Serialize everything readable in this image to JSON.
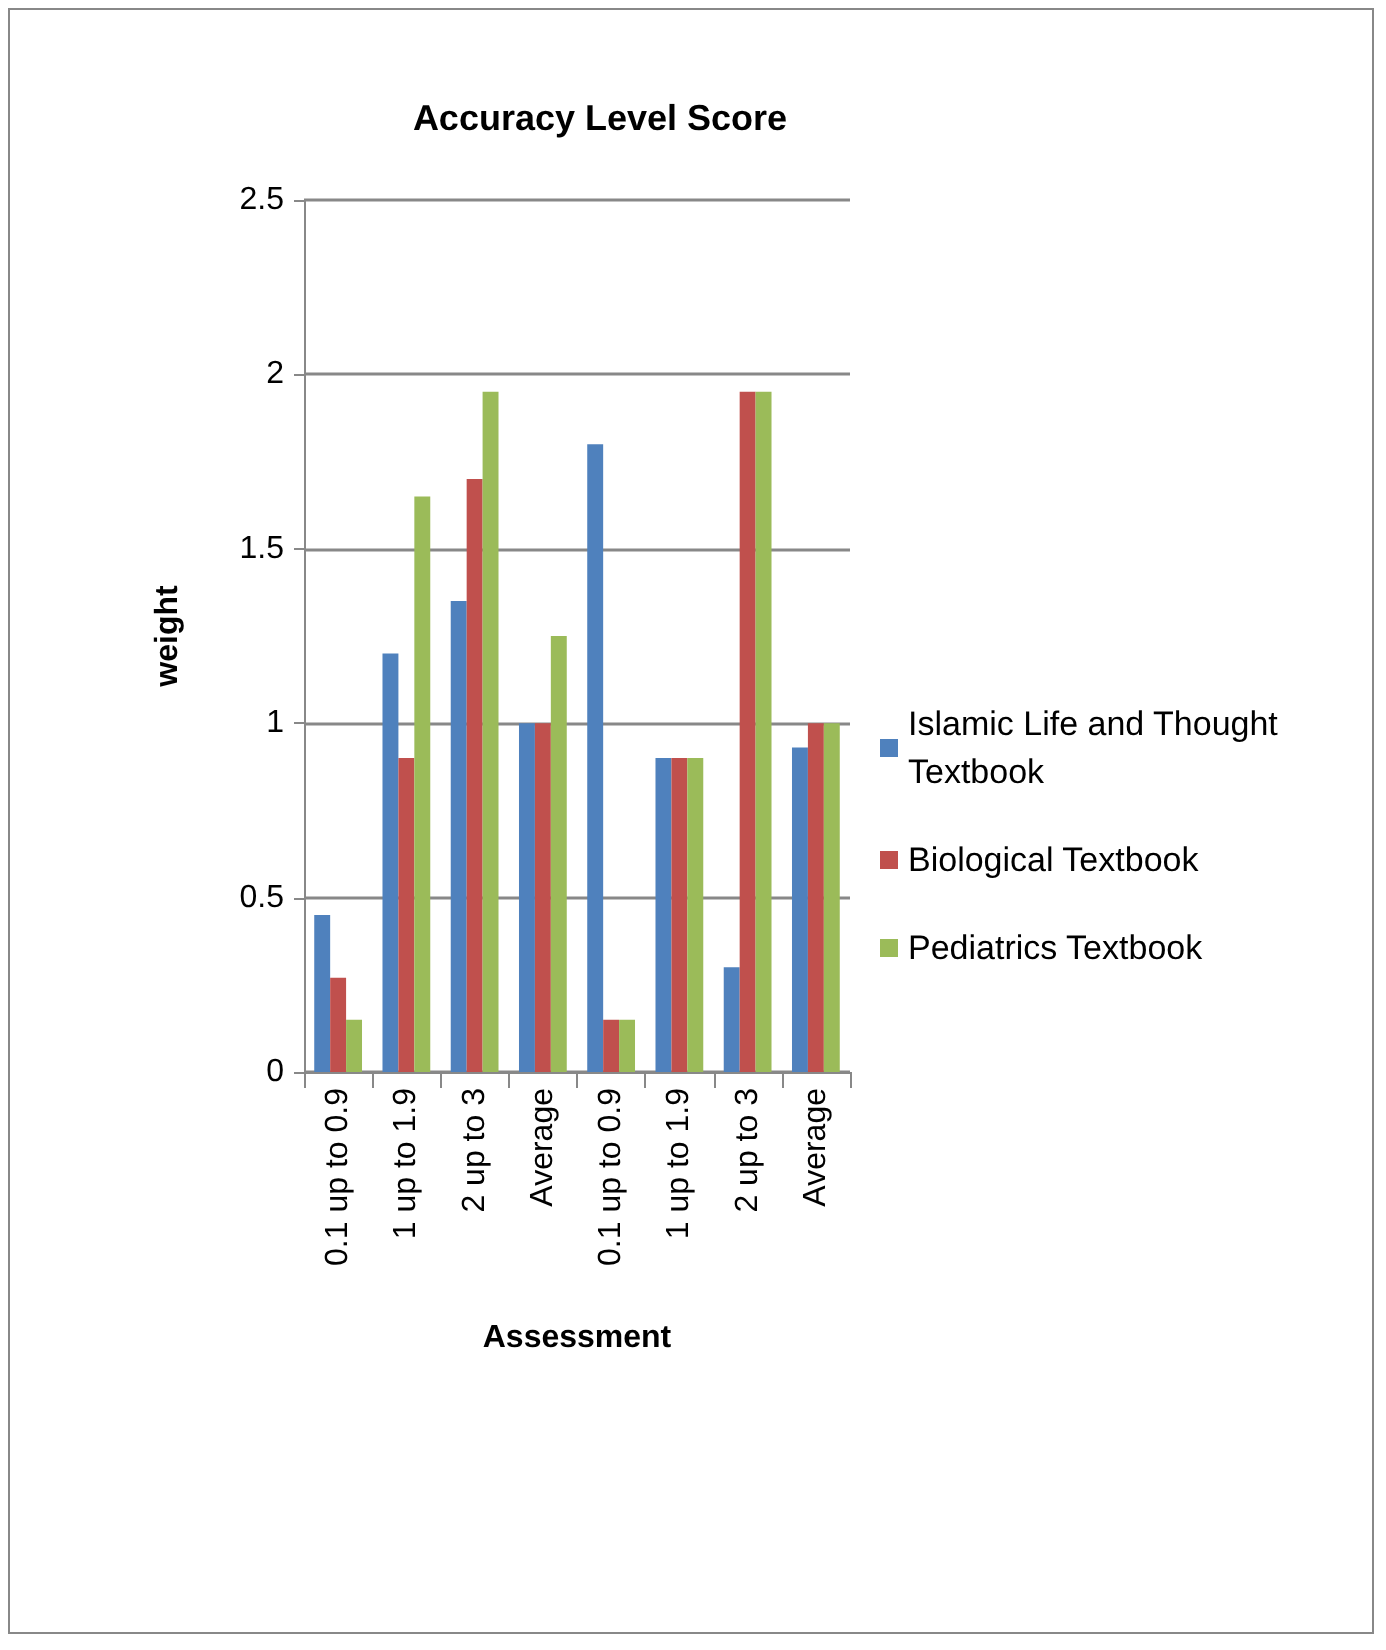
{
  "chart_data": {
    "type": "bar",
    "title": "Accuracy Level Score",
    "xlabel": "Assessment",
    "ylabel": "weight",
    "categories": [
      "0.1 up to 0.9",
      "1 up to 1.9",
      "2 up to 3",
      "Average",
      "0.1 up to 0.9",
      "1 up to 1.9",
      "2 up to 3",
      "Average"
    ],
    "series": [
      {
        "name": "Islamic Life and Thought Textbook",
        "color": "#4f81bd",
        "values": [
          0.45,
          1.2,
          1.35,
          1.0,
          1.8,
          0.9,
          0.3,
          0.93
        ]
      },
      {
        "name": "Biological Textbook",
        "color": "#c0504d",
        "values": [
          0.27,
          0.9,
          1.7,
          1.0,
          0.15,
          0.9,
          1.95,
          1.0
        ]
      },
      {
        "name": "Pediatrics Textbook",
        "color": "#9bbb59",
        "values": [
          0.15,
          1.65,
          1.95,
          1.25,
          0.15,
          0.9,
          1.95,
          1.0
        ]
      }
    ],
    "ylim": [
      0,
      2.5
    ],
    "yticks": [
      0,
      0.5,
      1,
      1.5,
      2,
      2.5
    ],
    "grid": "y",
    "legend": "right"
  }
}
